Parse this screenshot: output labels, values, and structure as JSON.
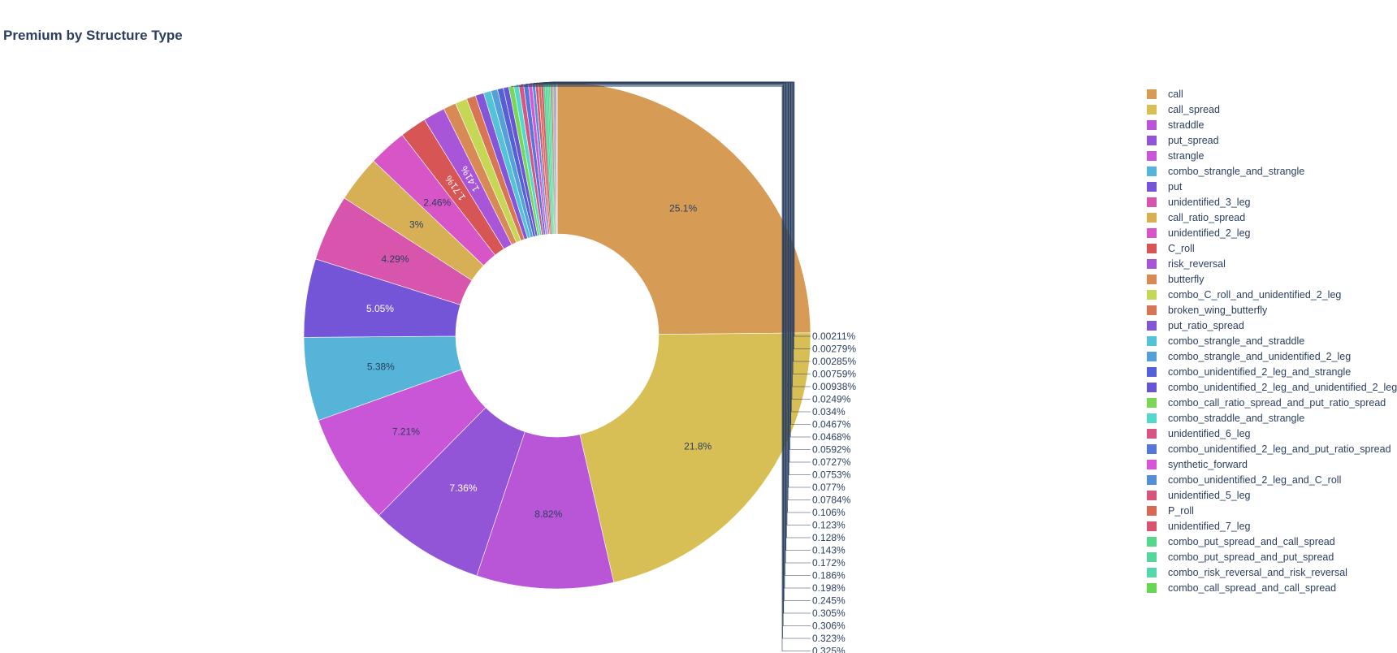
{
  "chart_data": {
    "type": "pie",
    "hole": true,
    "title": "Premium by Structure Type",
    "legend_position": "right",
    "slices": [
      {
        "label": "call",
        "value": 25.1,
        "text": "25.1%",
        "color": "#d69b55",
        "text_color": "#2a3f5f"
      },
      {
        "label": "call_spread",
        "value": 21.8,
        "text": "21.8%",
        "color": "#d7bf55",
        "text_color": "#2a3f5f"
      },
      {
        "label": "straddle",
        "value": 8.82,
        "text": "8.82%",
        "color": "#b955d7",
        "text_color": "#2a3f5f"
      },
      {
        "label": "put_spread",
        "value": 7.36,
        "text": "7.36%",
        "color": "#9355d7",
        "text_color": "#ffffff"
      },
      {
        "label": "strangle",
        "value": 7.21,
        "text": "7.21%",
        "color": "#c955d7",
        "text_color": "#2a3f5f"
      },
      {
        "label": "combo_strangle_and_strangle",
        "value": 5.38,
        "text": "5.38%",
        "color": "#55b4d7",
        "text_color": "#2a3f5f"
      },
      {
        "label": "put",
        "value": 5.05,
        "text": "5.05%",
        "color": "#7455d7",
        "text_color": "#ffffff"
      },
      {
        "label": "unidentified_3_leg",
        "value": 4.29,
        "text": "4.29%",
        "color": "#d755ad",
        "text_color": "#2a3f5f"
      },
      {
        "label": "call_ratio_spread",
        "value": 3.0,
        "text": "3%",
        "color": "#d7b055",
        "text_color": "#2a3f5f"
      },
      {
        "label": "unidentified_2_leg",
        "value": 2.46,
        "text": "2.46%",
        "color": "#d755c6",
        "text_color": "#2a3f5f"
      },
      {
        "label": "C_roll",
        "value": 1.71,
        "text": "1.71%",
        "color": "#d75555",
        "text_color": "#ffffff"
      },
      {
        "label": "risk_reversal",
        "value": 1.41,
        "text": "1.41%",
        "color": "#a855d7",
        "text_color": "#ffffff"
      },
      {
        "label": "butterfly",
        "value": 0.818,
        "text": "",
        "color": "#d78a55",
        "text_color": "#2a3f5f"
      },
      {
        "label": "combo_C_roll_and_unidentified_2_leg",
        "value": 0.765,
        "text": "",
        "color": "#c6d755",
        "text_color": "#2a3f5f"
      },
      {
        "label": "broken_wing_butterfly",
        "value": 0.59,
        "text": "",
        "color": "#d77555",
        "text_color": "#2a3f5f"
      },
      {
        "label": "put_ratio_spread",
        "value": 0.55,
        "text": "",
        "color": "#8555d7",
        "text_color": "#2a3f5f"
      },
      {
        "label": "combo_strangle_and_straddle",
        "value": 0.48,
        "text": "",
        "color": "#55c3d7",
        "text_color": "#2a3f5f"
      },
      {
        "label": "combo_strangle_and_unidentified_2_leg",
        "value": 0.43,
        "text": "",
        "color": "#55a0d7",
        "text_color": "#2a3f5f"
      },
      {
        "label": "combo_unidentified_2_leg_and_strangle",
        "value": 0.38,
        "text": "",
        "color": "#5560d7",
        "text_color": "#2a3f5f"
      },
      {
        "label": "combo_unidentified_2_leg_and_unidentified_2_leg",
        "value": 0.35,
        "text": "",
        "color": "#6755d7",
        "text_color": "#2a3f5f"
      },
      {
        "label": "combo_call_ratio_spread_and_put_ratio_spread",
        "value": 0.325,
        "text": "0.325%",
        "color": "#7ad755",
        "text_color": "#2a3f5f"
      },
      {
        "label": "combo_straddle_and_strangle",
        "value": 0.323,
        "text": "0.323%",
        "color": "#55d7cc",
        "text_color": "#2a3f5f"
      },
      {
        "label": "unidentified_6_leg",
        "value": 0.306,
        "text": "0.306%",
        "color": "#d75585",
        "text_color": "#2a3f5f"
      },
      {
        "label": "combo_unidentified_2_leg_and_put_ratio_spread",
        "value": 0.305,
        "text": "0.305%",
        "color": "#5577d7",
        "text_color": "#2a3f5f"
      },
      {
        "label": "synthetic_forward",
        "value": 0.245,
        "text": "0.245%",
        "color": "#d755d7",
        "text_color": "#2a3f5f"
      },
      {
        "label": "combo_unidentified_2_leg_and_C_roll",
        "value": 0.198,
        "text": "0.198%",
        "color": "#5590d7",
        "text_color": "#2a3f5f"
      },
      {
        "label": "unidentified_5_leg",
        "value": 0.186,
        "text": "0.186%",
        "color": "#d7557a",
        "text_color": "#2a3f5f"
      },
      {
        "label": "P_roll",
        "value": 0.172,
        "text": "0.172%",
        "color": "#d76a55",
        "text_color": "#2a3f5f"
      },
      {
        "label": "unidentified_7_leg",
        "value": 0.143,
        "text": "0.143%",
        "color": "#d75570",
        "text_color": "#2a3f5f"
      },
      {
        "label": "combo_put_spread_and_call_spread",
        "value": 0.128,
        "text": "0.128%",
        "color": "#55d78c",
        "text_color": "#2a3f5f"
      },
      {
        "label": "combo_put_spread_and_put_spread",
        "value": 0.123,
        "text": "0.123%",
        "color": "#55d79b",
        "text_color": "#2a3f5f"
      },
      {
        "label": "combo_risk_reversal_and_risk_reversal",
        "value": 0.106,
        "text": "0.106%",
        "color": "#55d7ac",
        "text_color": "#2a3f5f"
      },
      {
        "label": "combo_call_spread_and_call_spread",
        "value": 0.0784,
        "text": "0.0784%",
        "color": "#66d755",
        "text_color": "#2a3f5f"
      },
      {
        "label": "",
        "value": 0.077,
        "text": "0.077%",
        "color": "#55d7bb",
        "text_color": "#2a3f5f"
      },
      {
        "label": "",
        "value": 0.0753,
        "text": "0.0753%",
        "color": "#d7559a",
        "text_color": "#2a3f5f"
      },
      {
        "label": "",
        "value": 0.0727,
        "text": "0.0727%",
        "color": "#9ad755",
        "text_color": "#2a3f5f"
      },
      {
        "label": "",
        "value": 0.0592,
        "text": "0.0592%",
        "color": "#55a8d7",
        "text_color": "#2a3f5f"
      },
      {
        "label": "",
        "value": 0.0468,
        "text": "0.0468%",
        "color": "#d7559f",
        "text_color": "#2a3f5f"
      },
      {
        "label": "",
        "value": 0.0467,
        "text": "0.0467%",
        "color": "#7d55d7",
        "text_color": "#2a3f5f"
      },
      {
        "label": "",
        "value": 0.034,
        "text": "0.034%",
        "color": "#55d7d2",
        "text_color": "#2a3f5f"
      },
      {
        "label": "",
        "value": 0.0249,
        "text": "0.0249%",
        "color": "#d78055",
        "text_color": "#2a3f5f"
      },
      {
        "label": "",
        "value": 0.00938,
        "text": "0.00938%",
        "color": "#55d770",
        "text_color": "#2a3f5f"
      },
      {
        "label": "",
        "value": 0.00759,
        "text": "0.00759%",
        "color": "#b5d755",
        "text_color": "#2a3f5f"
      },
      {
        "label": "",
        "value": 0.00285,
        "text": "0.00285%",
        "color": "#d75560",
        "text_color": "#2a3f5f"
      },
      {
        "label": "",
        "value": 0.00279,
        "text": "0.00279%",
        "color": "#55d7a2",
        "text_color": "#2a3f5f"
      },
      {
        "label": "",
        "value": 0.00211,
        "text": "0.00211%",
        "color": "#a3d755",
        "text_color": "#2a3f5f"
      }
    ],
    "legend_entries": [
      {
        "label": "call",
        "color": "#d69b55"
      },
      {
        "label": "call_spread",
        "color": "#d7bf55"
      },
      {
        "label": "straddle",
        "color": "#b955d7"
      },
      {
        "label": "put_spread",
        "color": "#9355d7"
      },
      {
        "label": "strangle",
        "color": "#c955d7"
      },
      {
        "label": "combo_strangle_and_strangle",
        "color": "#55b4d7"
      },
      {
        "label": "put",
        "color": "#7455d7"
      },
      {
        "label": "unidentified_3_leg",
        "color": "#d755ad"
      },
      {
        "label": "call_ratio_spread",
        "color": "#d7b055"
      },
      {
        "label": "unidentified_2_leg",
        "color": "#d755c6"
      },
      {
        "label": "C_roll",
        "color": "#d75555"
      },
      {
        "label": "risk_reversal",
        "color": "#a855d7"
      },
      {
        "label": "butterfly",
        "color": "#d78a55"
      },
      {
        "label": "combo_C_roll_and_unidentified_2_leg",
        "color": "#c6d755"
      },
      {
        "label": "broken_wing_butterfly",
        "color": "#d77555"
      },
      {
        "label": "put_ratio_spread",
        "color": "#8555d7"
      },
      {
        "label": "combo_strangle_and_straddle",
        "color": "#55c3d7"
      },
      {
        "label": "combo_strangle_and_unidentified_2_leg",
        "color": "#55a0d7"
      },
      {
        "label": "combo_unidentified_2_leg_and_strangle",
        "color": "#5560d7"
      },
      {
        "label": "combo_unidentified_2_leg_and_unidentified_2_leg",
        "color": "#6755d7"
      },
      {
        "label": "combo_call_ratio_spread_and_put_ratio_spread",
        "color": "#7ad755"
      },
      {
        "label": "combo_straddle_and_strangle",
        "color": "#55d7cc"
      },
      {
        "label": "unidentified_6_leg",
        "color": "#d75585"
      },
      {
        "label": "combo_unidentified_2_leg_and_put_ratio_spread",
        "color": "#5577d7"
      },
      {
        "label": "synthetic_forward",
        "color": "#d755d7"
      },
      {
        "label": "combo_unidentified_2_leg_and_C_roll",
        "color": "#5590d7"
      },
      {
        "label": "unidentified_5_leg",
        "color": "#d7557a"
      },
      {
        "label": "P_roll",
        "color": "#d76a55"
      },
      {
        "label": "unidentified_7_leg",
        "color": "#d75570"
      },
      {
        "label": "combo_put_spread_and_call_spread",
        "color": "#55d78c"
      },
      {
        "label": "combo_put_spread_and_put_spread",
        "color": "#55d79b"
      },
      {
        "label": "combo_risk_reversal_and_risk_reversal",
        "color": "#55d7ac"
      },
      {
        "label": "combo_call_spread_and_call_spread",
        "color": "#66d755"
      }
    ]
  }
}
